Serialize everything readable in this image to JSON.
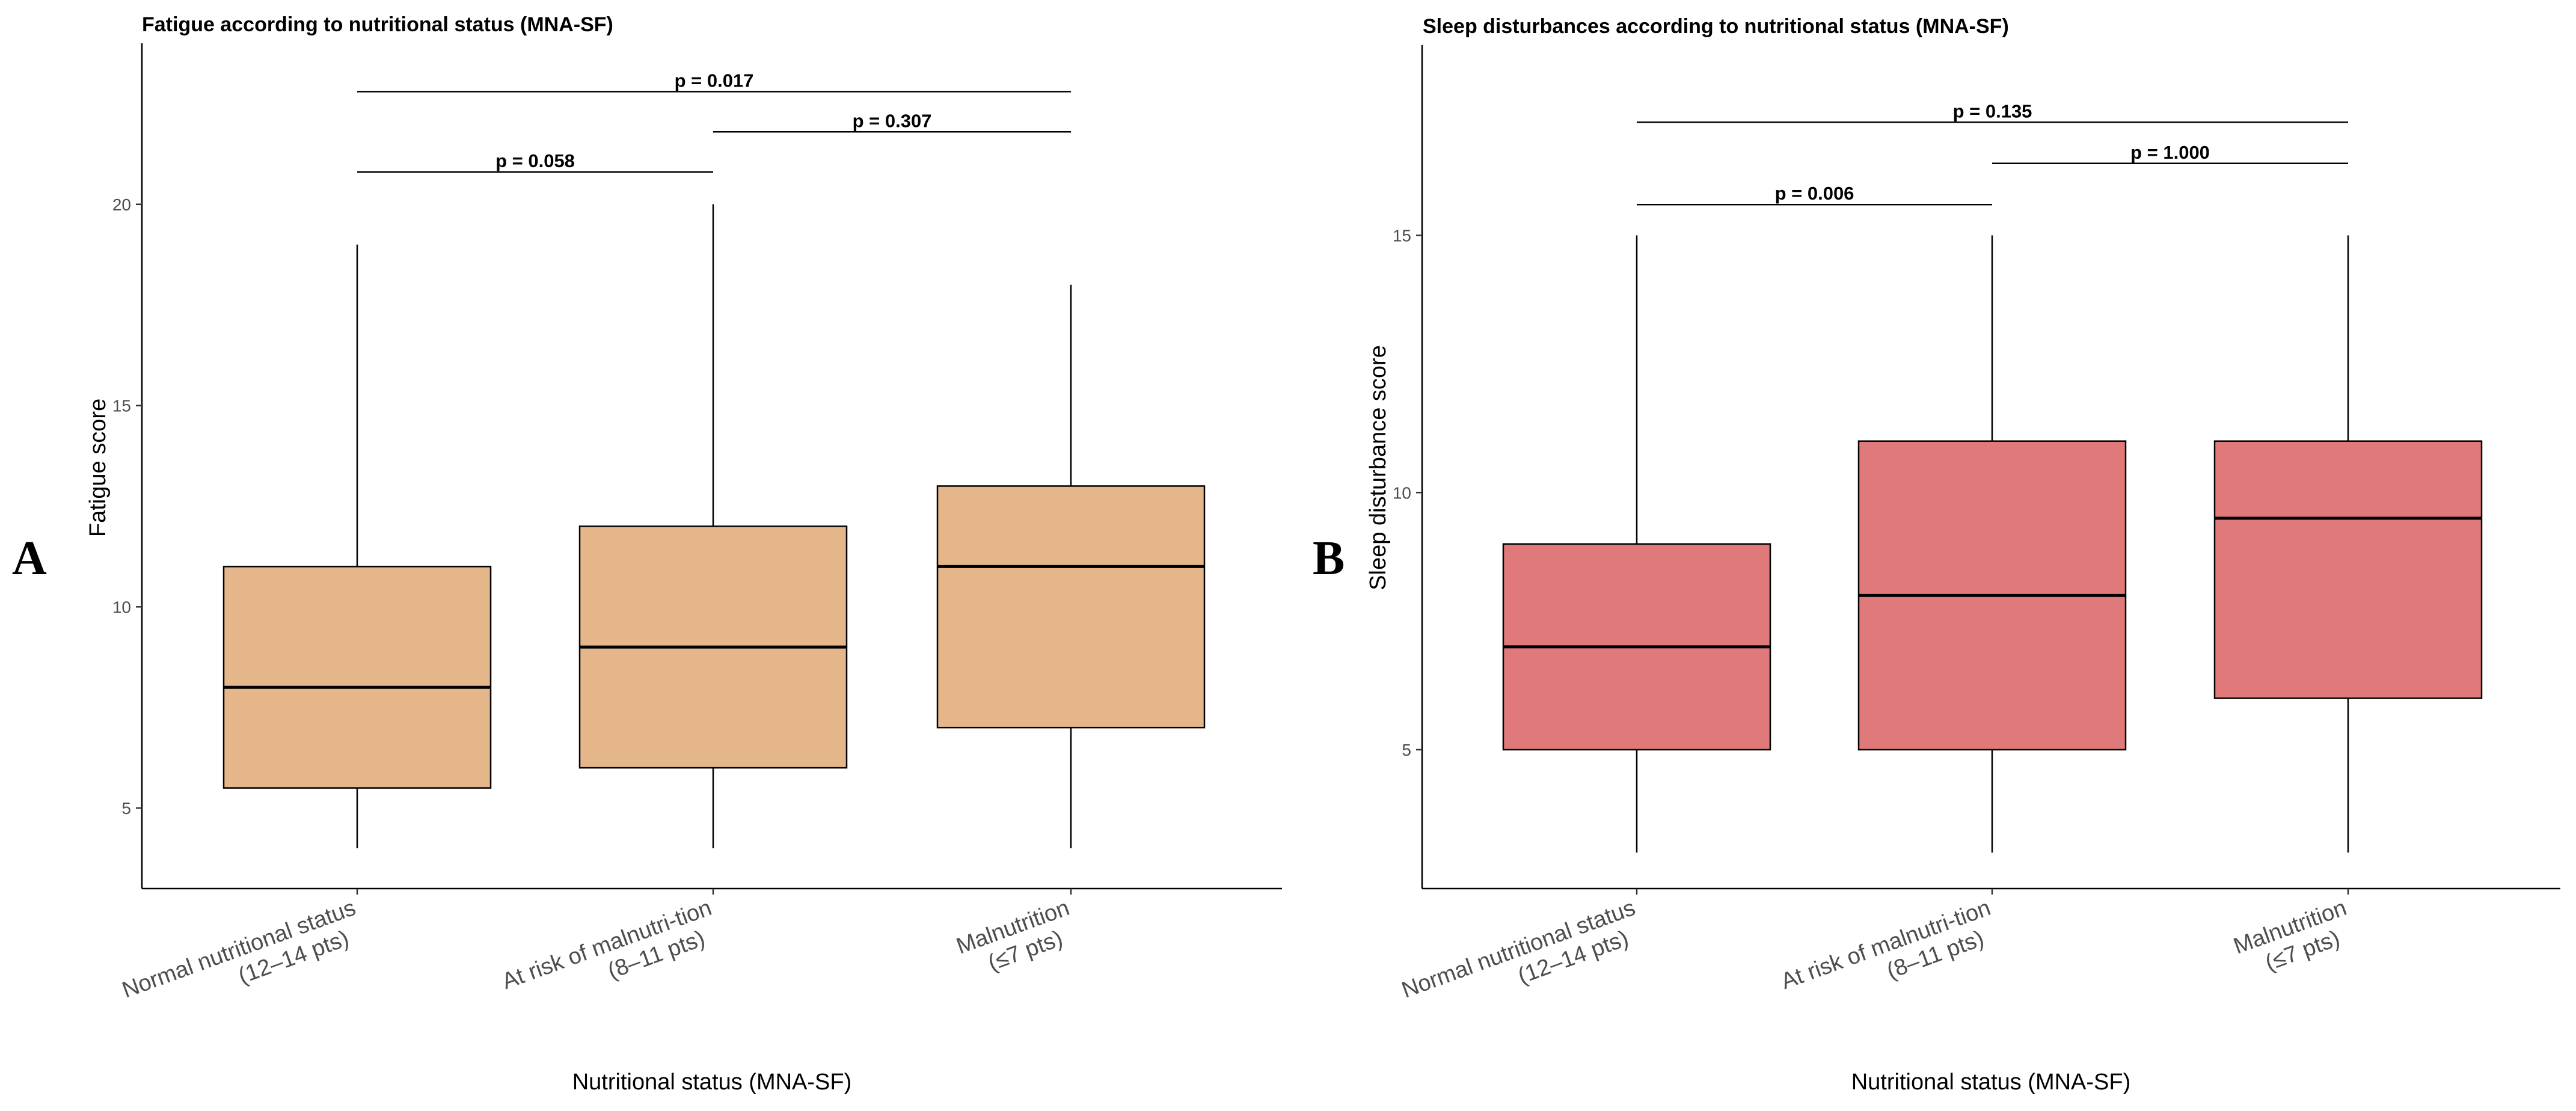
{
  "chart_data": [
    {
      "type": "box",
      "panel_label": "A",
      "title": "Fatigue according to nutritional status (MNA-SF)",
      "xlabel": "Nutritional status (MNA-SF)",
      "ylabel": "Fatigue score",
      "ylim": [
        3,
        24
      ],
      "yticks": [
        5,
        10,
        15,
        20
      ],
      "ytick_labels": [
        "5",
        "10",
        "15",
        "20"
      ],
      "fill_color": "#E5B689",
      "categories": [
        {
          "line1": "Normal nutritional status",
          "line2": "(12–14 pts)"
        },
        {
          "line1": "At risk of malnutri-tion",
          "line2": "(8–11 pts)"
        },
        {
          "line1": "Malnutrition",
          "line2": "(≤7 pts)"
        }
      ],
      "boxes": [
        {
          "min": 4,
          "q1": 5.5,
          "median": 8,
          "q3": 11,
          "max": 19
        },
        {
          "min": 4,
          "q1": 6,
          "median": 9,
          "q3": 12,
          "max": 20
        },
        {
          "min": 4,
          "q1": 7,
          "median": 11,
          "q3": 13,
          "max": 18
        }
      ],
      "comparisons": [
        {
          "from": 0,
          "to": 2,
          "y": 22.8,
          "label": "p = 0.017"
        },
        {
          "from": 1,
          "to": 2,
          "y": 21.8,
          "label": "p = 0.307"
        },
        {
          "from": 0,
          "to": 1,
          "y": 20.8,
          "label": "p = 0.058"
        }
      ]
    },
    {
      "type": "box",
      "panel_label": "B",
      "title": "Sleep disturbances according to nutritional status (MNA-SF)",
      "xlabel": "Nutritional status (MNA-SF)",
      "ylabel": "Sleep disturbance score",
      "ylim": [
        2.3,
        18.7
      ],
      "yticks": [
        5,
        10,
        15
      ],
      "ytick_labels": [
        "5",
        "10",
        "15"
      ],
      "fill_color": "#E07A7A",
      "categories": [
        {
          "line1": "Normal nutritional status",
          "line2": "(12–14 pts)"
        },
        {
          "line1": "At risk of malnutri-tion",
          "line2": "(8–11 pts)"
        },
        {
          "line1": "Malnutrition",
          "line2": "(≤7 pts)"
        }
      ],
      "boxes": [
        {
          "min": 3,
          "q1": 5,
          "median": 7,
          "q3": 9,
          "max": 15
        },
        {
          "min": 3,
          "q1": 5,
          "median": 8,
          "q3": 11,
          "max": 15
        },
        {
          "min": 3,
          "q1": 6,
          "median": 9.5,
          "q3": 11,
          "max": 15
        }
      ],
      "comparisons": [
        {
          "from": 0,
          "to": 2,
          "y": 17.2,
          "label": "p = 0.135"
        },
        {
          "from": 1,
          "to": 2,
          "y": 16.4,
          "label": "p = 1.000"
        },
        {
          "from": 0,
          "to": 1,
          "y": 15.6,
          "label": "p = 0.006"
        }
      ]
    }
  ]
}
